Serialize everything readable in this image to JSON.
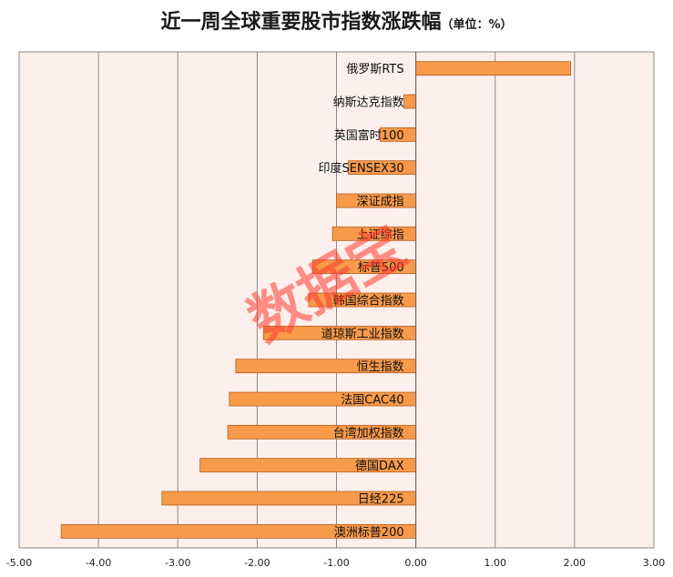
{
  "chart_data": {
    "type": "bar",
    "orientation": "horizontal",
    "title": "近一周全球重要股市指数涨跌幅",
    "unit_note": "（单位：%）",
    "categories": [
      "俄罗斯RTS",
      "纳斯达克指数",
      "英国富时100",
      "印度SENSEX30",
      "深证成指",
      "上证综指",
      "标普500",
      "韩国综合指数",
      "道琼斯工业指数",
      "恒生指数",
      "法国CAC40",
      "台湾加权指数",
      "德国DAX",
      "日经225",
      "澳洲标普200"
    ],
    "values": [
      1.95,
      -0.15,
      -0.45,
      -0.85,
      -1.0,
      -1.05,
      -1.3,
      -1.35,
      -1.92,
      -2.27,
      -2.35,
      -2.37,
      -2.72,
      -3.2,
      -4.47
    ],
    "xlim": [
      -5,
      3
    ],
    "xticks": [
      -5,
      -4,
      -3,
      -2,
      -1,
      0,
      1,
      2,
      3
    ],
    "xtick_labels": [
      "-5.00",
      "-4.00",
      "-3.00",
      "-2.00",
      "-1.00",
      "0.00",
      "1.00",
      "2.00",
      "3.00"
    ],
    "grid": true,
    "bar_color": "#f79a4a",
    "bar_border_color": "#b45f1e",
    "plot_background": "#fdf0ec"
  },
  "watermark": "数据宝"
}
